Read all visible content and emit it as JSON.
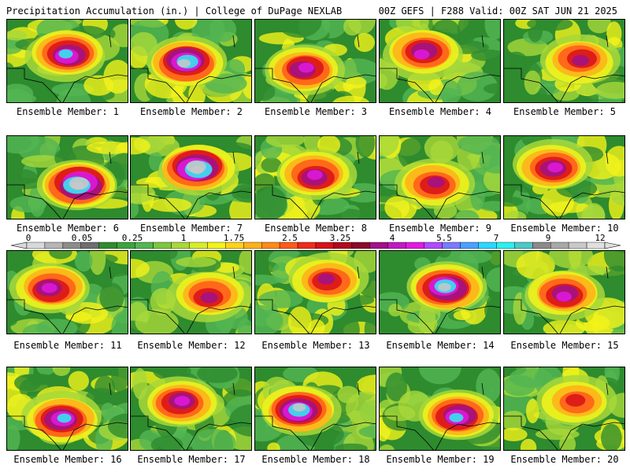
{
  "header": {
    "title": "Precipitation Accumulation (in.) | College of DuPage NEXLAB",
    "run_info": "00Z GEFS | F288 Valid: 00Z SAT JUN 21 2025"
  },
  "legend": {
    "labels": [
      "0",
      "0.05",
      "0.25",
      "1",
      "1.75",
      "2.5",
      "3.25",
      "4",
      "5.5",
      "7",
      "9",
      "12"
    ],
    "colors": [
      "#d9d9d9",
      "#b5b5b5",
      "#8c8c8c",
      "#6e6e6e",
      "#2e8b2e",
      "#3ca33c",
      "#52b552",
      "#7cc83c",
      "#a8d83a",
      "#d8ec2a",
      "#f3f31a",
      "#ffd21a",
      "#ffb01a",
      "#ff8a1a",
      "#ff5a1a",
      "#f02a1a",
      "#d8101a",
      "#b00a1e",
      "#8a0a28",
      "#a0108a",
      "#c01ac0",
      "#e01ae0",
      "#b04aff",
      "#7a7aff",
      "#4aa0ff",
      "#2ad8ff",
      "#2af0f0",
      "#4ac8c8",
      "#8a8a8a",
      "#a8a8a8",
      "#c8c8c8",
      "#e0e0e0"
    ]
  },
  "members": [
    {
      "label": "Ensemble Member: 1",
      "intensity": 0.75
    },
    {
      "label": "Ensemble Member: 2",
      "intensity": 0.85
    },
    {
      "label": "Ensemble Member: 3",
      "intensity": 0.7
    },
    {
      "label": "Ensemble Member: 4",
      "intensity": 0.72
    },
    {
      "label": "Ensemble Member: 5",
      "intensity": 0.55
    },
    {
      "label": "Ensemble Member: 6",
      "intensity": 0.95
    },
    {
      "label": "Ensemble Member: 7",
      "intensity": 0.95
    },
    {
      "label": "Ensemble Member: 8",
      "intensity": 0.7
    },
    {
      "label": "Ensemble Member: 9",
      "intensity": 0.55
    },
    {
      "label": "Ensemble Member: 10",
      "intensity": 0.7
    },
    {
      "label": "Ensemble Member: 11",
      "intensity": 0.72
    },
    {
      "label": "Ensemble Member: 12",
      "intensity": 0.6
    },
    {
      "label": "Ensemble Member: 13",
      "intensity": 0.62
    },
    {
      "label": "Ensemble Member: 14",
      "intensity": 0.85
    },
    {
      "label": "Ensemble Member: 15",
      "intensity": 0.7
    },
    {
      "label": "Ensemble Member: 16",
      "intensity": 0.78
    },
    {
      "label": "Ensemble Member: 17",
      "intensity": 0.72
    },
    {
      "label": "Ensemble Member: 18",
      "intensity": 0.85
    },
    {
      "label": "Ensemble Member: 19",
      "intensity": 0.8
    },
    {
      "label": "Ensemble Member: 20",
      "intensity": 0.5
    }
  ]
}
